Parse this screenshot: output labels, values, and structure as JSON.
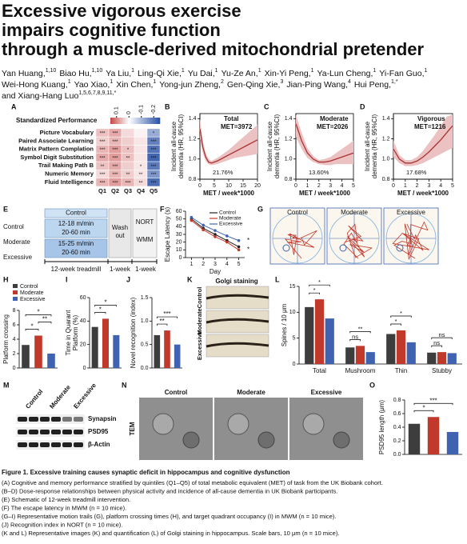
{
  "title": [
    "Excessive vigorous exercise",
    "impairs cognitive function",
    "through a muscle-derived mitochondrial pretender"
  ],
  "authors": [
    [
      {
        "name": "Yan Huang,",
        "sup": "1,10"
      },
      {
        "name": "Biao Hu,",
        "sup": "1,10"
      },
      {
        "name": "Ya Liu,",
        "sup": "1"
      },
      {
        "name": "Ling-Qi Xie,",
        "sup": "1"
      },
      {
        "name": "Yu Dai,",
        "sup": "1"
      },
      {
        "name": "Yu-Ze An,",
        "sup": "1"
      },
      {
        "name": "Xin-Yi Peng,",
        "sup": "1"
      },
      {
        "name": "Ya-Lun Cheng,",
        "sup": "1"
      },
      {
        "name": "Yi-Fan Guo,",
        "sup": "1"
      }
    ],
    [
      {
        "name": "Wei-Hong Kuang,",
        "sup": "1"
      },
      {
        "name": "Yao Xiao,",
        "sup": "1"
      },
      {
        "name": "Xin Chen,",
        "sup": "1"
      },
      {
        "name": "Yong-jun Zheng,",
        "sup": "2"
      },
      {
        "name": "Gen-Qing Xie,",
        "sup": "3"
      },
      {
        "name": "Jian-Ping Wang,",
        "sup": "4"
      },
      {
        "name": "Hui Peng,",
        "sup": "1,*"
      }
    ],
    [
      {
        "name": "and Xiang-Hang Luo",
        "sup": "1,5,6,7,8,9,11,*"
      }
    ]
  ],
  "groups": [
    {
      "name": "Control",
      "color": "#3d3d3d"
    },
    {
      "name": "Moderate",
      "color": "#c0392b"
    },
    {
      "name": "Excessive",
      "color": "#3f63b0"
    }
  ],
  "panels": {
    "A": {
      "label": "A",
      "title": "Standardized Performance",
      "rows": [
        "Picture Vocabulary",
        "Paired Associate Learning",
        "Matrix Pattern Complation",
        "Symbol Digit Substitution",
        "Trail Making Path B",
        "Numeric Memory",
        "Fluid Intelligence"
      ],
      "cols": [
        "Q1",
        "Q2",
        "Q3",
        "Q4",
        "Q5"
      ],
      "clim": [
        -0.25,
        0.15
      ],
      "cticks": [
        0.1,
        0,
        -0.1,
        -0.2
      ],
      "values": [
        [
          0.05,
          0.07,
          0.03,
          0.01,
          -0.12
        ],
        [
          0.04,
          0.06,
          0.04,
          0.02,
          -0.18
        ],
        [
          0.06,
          0.08,
          0.05,
          0.02,
          -0.2
        ],
        [
          0.07,
          0.08,
          0.05,
          0.02,
          -0.22
        ],
        [
          0.05,
          0.07,
          0.04,
          0.02,
          -0.19
        ],
        [
          0.03,
          0.06,
          0.04,
          0.02,
          -0.15
        ],
        [
          0.06,
          0.08,
          0.06,
          0.03,
          -0.21
        ]
      ],
      "stars": [
        [
          "***",
          "***",
          null,
          null,
          "*"
        ],
        [
          "***",
          "***",
          null,
          null,
          "***"
        ],
        [
          "***",
          "***",
          "*",
          null,
          "***"
        ],
        [
          "***",
          "***",
          "**",
          null,
          "***"
        ],
        [
          "**",
          "***",
          null,
          "*",
          "***"
        ],
        [
          "***",
          "***",
          "**",
          "**",
          "***"
        ],
        [
          "***",
          "***",
          "***",
          "**",
          "***"
        ]
      ]
    },
    "B": {
      "label": "B",
      "chart": {
        "type": "line",
        "title": "Total",
        "annotation": "MET=3972",
        "percent": "21.76%",
        "ylabel": [
          "Incident all-cause",
          "dementia (HR, 95%CI)"
        ],
        "xlabel": "MET / week*1000",
        "x": [
          0,
          1,
          2,
          3,
          4,
          6,
          8,
          10,
          12,
          14,
          16,
          18,
          20
        ],
        "y": [
          1.3,
          1.12,
          1.02,
          0.97,
          0.96,
          0.98,
          1.01,
          1.04,
          1.07,
          1.1,
          1.13,
          1.16,
          1.19
        ],
        "lower": [
          1.2,
          1.06,
          0.98,
          0.95,
          0.94,
          0.95,
          0.97,
          0.99,
          1.01,
          1.02,
          1.03,
          1.04,
          1.05
        ],
        "upper": [
          1.4,
          1.18,
          1.06,
          1.0,
          0.98,
          1.01,
          1.05,
          1.09,
          1.14,
          1.19,
          1.24,
          1.29,
          1.34
        ],
        "xlim": [
          0,
          20
        ],
        "ylim": [
          0.8,
          1.45
        ],
        "xticks": [
          0,
          5,
          10,
          15,
          20
        ],
        "yticks": [
          0.8,
          {
            "value": 1.0,
            "label": "1.0"
          },
          1.2,
          1.4
        ]
      }
    },
    "C": {
      "label": "C",
      "chart": {
        "type": "line",
        "title": "Moderate",
        "annotation": "MET=2026",
        "percent": "13.60%",
        "ylabel": [
          "Incident all-cause",
          "dementia (HR, 95%CI)"
        ],
        "xlabel": "MET / week*1000",
        "x": [
          0,
          0.5,
          1,
          1.5,
          2,
          2.5,
          3,
          3.5,
          4,
          4.5,
          5
        ],
        "y": [
          1.35,
          1.18,
          1.06,
          1.0,
          0.97,
          0.97,
          0.98,
          1.0,
          1.02,
          1.04,
          1.06
        ],
        "lower": [
          1.22,
          1.1,
          1.01,
          0.97,
          0.95,
          0.94,
          0.94,
          0.95,
          0.95,
          0.95,
          0.95
        ],
        "upper": [
          1.44,
          1.26,
          1.11,
          1.03,
          0.99,
          1.0,
          1.02,
          1.06,
          1.1,
          1.14,
          1.18
        ],
        "xlim": [
          0,
          5
        ],
        "ylim": [
          0.8,
          1.45
        ],
        "xticks": [
          0,
          1,
          2,
          3,
          4,
          5
        ],
        "yticks": [
          0.8,
          {
            "value": 1.0,
            "label": "1.0"
          },
          1.2,
          1.4
        ]
      }
    },
    "D": {
      "label": "D",
      "chart": {
        "type": "line",
        "title": "Vigorous",
        "annotation": "MET=1216",
        "percent": "17.68%",
        "ylabel": [
          "Incident all-cause",
          "dementia (HR, 95%CI)"
        ],
        "xlabel": "MET / week*1000",
        "x": [
          0,
          0.5,
          1,
          1.5,
          2,
          2.5,
          3,
          3.5,
          4,
          4.5,
          5
        ],
        "y": [
          1.1,
          1.0,
          0.96,
          0.96,
          0.98,
          1.02,
          1.07,
          1.13,
          1.19,
          1.26,
          1.33
        ],
        "lower": [
          1.02,
          0.96,
          0.93,
          0.93,
          0.94,
          0.96,
          0.99,
          1.02,
          1.05,
          1.08,
          1.11
        ],
        "upper": [
          1.18,
          1.04,
          0.99,
          0.99,
          1.02,
          1.08,
          1.16,
          1.24,
          1.33,
          1.42,
          1.44
        ],
        "xlim": [
          0,
          5
        ],
        "ylim": [
          0.8,
          1.45
        ],
        "xticks": [
          0,
          1,
          2,
          3,
          4,
          5
        ],
        "yticks": [
          0.8,
          {
            "value": 1.0,
            "label": "1.0"
          },
          1.2,
          1.4
        ]
      }
    },
    "E": {
      "label": "E",
      "groups": [
        "Control",
        "Moderate",
        "Excessive"
      ],
      "control": "Control",
      "moderate": [
        "12-18 m/min",
        "20-60 min"
      ],
      "excessive": [
        "15-25 m/min",
        "20-60 min"
      ],
      "washout": [
        "Wash",
        "out"
      ],
      "tests": [
        "NORT",
        "WMM"
      ],
      "timeline": [
        "12-week treadmill",
        "1-week",
        "1-week"
      ]
    },
    "F": {
      "label": "F",
      "chart": {
        "type": "line",
        "ylabel": "Escape Latency (s)",
        "xlabel": "Day",
        "xlim": [
          0.5,
          5.5
        ],
        "xticks": [
          1,
          2,
          3,
          4,
          5
        ],
        "ylim": [
          0,
          60
        ],
        "yticks": [
          0,
          10,
          20,
          30,
          40,
          50,
          60
        ],
        "x": [
          1,
          2,
          3,
          4,
          5
        ],
        "series": [
          {
            "name": "Control",
            "color": "#222222",
            "values": [
              50,
              38,
              30,
              22,
              14
            ]
          },
          {
            "name": "Moderate",
            "color": "#c0392b",
            "values": [
              48,
              36,
              27,
              20,
              10
            ]
          },
          {
            "name": "Excessive",
            "color": "#3f63b0",
            "values": [
              52,
              42,
              35,
              28,
              22
            ]
          }
        ],
        "annotations": [
          "*",
          "*"
        ]
      }
    },
    "G": {
      "label": "G",
      "titles": [
        "Control",
        "Moderate",
        "Excessive"
      ]
    },
    "H": {
      "label": "H",
      "chart": {
        "type": "bar",
        "ylabel": "Platform crossing",
        "ylim": [
          0,
          8
        ],
        "yticks": [
          0,
          2,
          4,
          6,
          8
        ],
        "values": [
          3.2,
          4.5,
          2.0
        ],
        "sig": [
          {
            "from": "Control",
            "to": "Moderate",
            "label": "*"
          },
          {
            "from": "Moderate",
            "to": "Excessive",
            "label": "**"
          },
          {
            "from": "Control",
            "to": "Excessive",
            "label": "*"
          }
        ]
      }
    },
    "I": {
      "label": "I",
      "chart": {
        "type": "bar",
        "ylabel": [
          "Time in Quarant",
          "Platform (%)"
        ],
        "ylim": [
          0,
          60
        ],
        "yticks": [
          0,
          20,
          40,
          60
        ],
        "values": [
          35,
          42,
          28
        ],
        "sig": [
          {
            "from": "Control",
            "to": "Moderate",
            "label": "*"
          },
          {
            "from": "Control",
            "to": "Excessive",
            "label": "*"
          }
        ]
      }
    },
    "J": {
      "label": "J",
      "chart": {
        "type": "bar",
        "ylabel": "Novel recognition (index)",
        "ylim": [
          0,
          1.5
        ],
        "yticks": [
          {
            "value": 0,
            "label": "0.0"
          },
          0.5,
          {
            "value": 1,
            "label": "1.0"
          },
          1.5
        ],
        "values": [
          0.7,
          0.8,
          0.5
        ],
        "sig": [
          {
            "from": "Control",
            "to": "Moderate",
            "label": "**"
          },
          {
            "from": "Control",
            "to": "Excessive",
            "label": "***"
          }
        ]
      }
    },
    "K": {
      "label": "K",
      "title": "Golgi staining",
      "rows": [
        "Control",
        "Moderate",
        "Excessive"
      ]
    },
    "L": {
      "label": "L",
      "chart": {
        "type": "grouped-bar",
        "ylabel": "Spines / 10 μm",
        "ylim": [
          0,
          15
        ],
        "yticks": [
          0,
          5,
          10,
          15
        ],
        "categories": [
          "Total",
          "Mushroom",
          "Thin",
          "Stubby"
        ],
        "series": [
          {
            "values": [
              11,
              3.2,
              5.8,
              2.2
            ]
          },
          {
            "values": [
              12.5,
              3.5,
              6.5,
              2.3
            ]
          },
          {
            "values": [
              8.8,
              2.3,
              4.2,
              2.1
            ]
          }
        ],
        "sig": [
          {
            "category": "Total",
            "from": "Control",
            "to": "Moderate",
            "label": "*"
          },
          {
            "category": "Total",
            "from": "Control",
            "to": "Excessive",
            "label": "*"
          },
          {
            "category": "Mushroom",
            "from": "Control",
            "to": "Moderate",
            "label": "ns"
          },
          {
            "category": "Mushroom",
            "from": "Control",
            "to": "Excessive",
            "label": "**"
          },
          {
            "category": "Thin",
            "from": "Control",
            "to": "Moderate",
            "label": "*"
          },
          {
            "category": "Thin",
            "from": "Control",
            "to": "Excessive",
            "label": "*"
          },
          {
            "category": "Stubby",
            "from": "Control",
            "to": "Moderate",
            "label": "ns"
          },
          {
            "category": "Stubby",
            "from": "Control",
            "to": "Excessive",
            "label": "ns"
          }
        ]
      }
    },
    "M": {
      "label": "M",
      "cols": [
        "Control",
        "Moderate",
        "Excessive"
      ],
      "rows": [
        "Synapsin",
        "PSD95",
        "β-Actin"
      ]
    },
    "N": {
      "label": "N",
      "side": "TEM",
      "titles": [
        "Control",
        "Moderate",
        "Excessive"
      ]
    },
    "O": {
      "label": "O",
      "chart": {
        "type": "bar",
        "ylabel": "PSD95 length (μm)",
        "ylim": [
          0,
          0.8
        ],
        "yticks": [
          {
            "value": 0,
            "label": "0.0"
          },
          0.2,
          0.4,
          0.6,
          0.8
        ],
        "values": [
          0.45,
          0.55,
          0.33
        ],
        "sig": [
          {
            "from": "Control",
            "to": "Moderate",
            "label": "*"
          },
          {
            "from": "Control",
            "to": "Excessive",
            "label": "***"
          }
        ]
      }
    }
  },
  "caption": {
    "title": "Figure 1. Excessive training causes synaptic deficit in hippocampus and cognitive dysfunction",
    "lines": [
      "(A) Cognitive and memory performance stratified by quintiles (Q1–Q5) of total metabolic equivalent (MET) of task from the UK Biobank cohort.",
      "(B–D) Dose-response relationships between physical activity and incidence of all-cause dementia in UK Biobank participants.",
      "(E) Schematic of 12-week treadmill intervention.",
      "(F) The escape latency in MWM (n = 10 mice).",
      "(G–I) Representative motion trails (G), platform crossing times (H), and target quadrant occupancy (I) in MWM (n = 10 mice).",
      "(J) Recognition index in NORT (n = 10 mice).",
      "(K and L) Representative images (K) and quantification (L) of Golgi staining in hippocampus. Scale bars, 10 μm (n = 10 mice)."
    ]
  }
}
